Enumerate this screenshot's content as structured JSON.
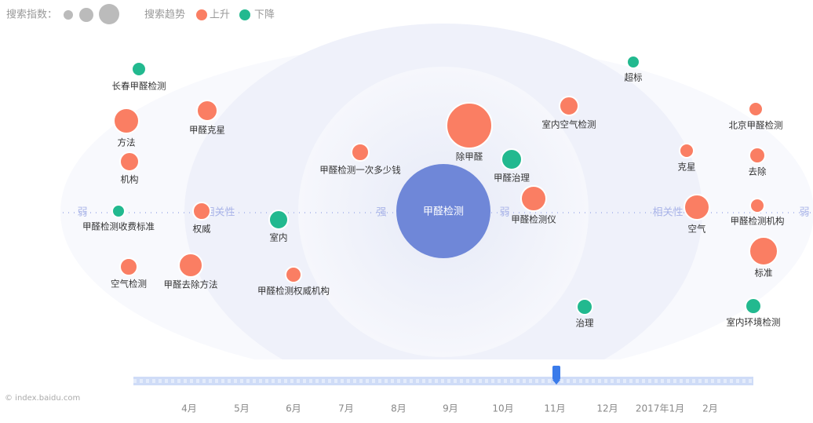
{
  "legend": {
    "index_label": "搜索指数：",
    "trend_label": "搜索趋势",
    "up": "上升",
    "down": "下降",
    "up_color": "#fa7e63",
    "down_color": "#22b98f"
  },
  "axis_labels": [
    "弱",
    "相关性",
    "强",
    "弱",
    "相关性",
    "弱"
  ],
  "center": {
    "label": "甲醛检测",
    "color": "#6f87d8"
  },
  "nodes": [
    {
      "label": "长春甲醛检测",
      "color": "#22b98f"
    },
    {
      "label": "方法",
      "color": "#fa7e63"
    },
    {
      "label": "甲醛克星",
      "color": "#fa7e63"
    },
    {
      "label": "机构",
      "color": "#fa7e63"
    },
    {
      "label": "甲醛检测收费标准",
      "color": "#22b98f"
    },
    {
      "label": "权威",
      "color": "#fa7e63"
    },
    {
      "label": "室内",
      "color": "#22b98f"
    },
    {
      "label": "空气检测",
      "color": "#fa7e63"
    },
    {
      "label": "甲醛去除方法",
      "color": "#fa7e63"
    },
    {
      "label": "甲醛检测权威机构",
      "color": "#fa7e63"
    },
    {
      "label": "甲醛检测一次多少钱",
      "color": "#fa7e63"
    },
    {
      "label": "除甲醛",
      "color": "#fa7e63"
    },
    {
      "label": "甲醛治理",
      "color": "#22b98f"
    },
    {
      "label": "甲醛检测仪",
      "color": "#fa7e63"
    },
    {
      "label": "室内空气检测",
      "color": "#fa7e63"
    },
    {
      "label": "超标",
      "color": "#22b98f"
    },
    {
      "label": "治理",
      "color": "#22b98f"
    },
    {
      "label": "克星",
      "color": "#fa7e63"
    },
    {
      "label": "空气",
      "color": "#fa7e63"
    },
    {
      "label": "北京甲醛检测",
      "color": "#fa7e63"
    },
    {
      "label": "去除",
      "color": "#fa7e63"
    },
    {
      "label": "甲醛检测机构",
      "color": "#fa7e63"
    },
    {
      "label": "标准",
      "color": "#fa7e63"
    },
    {
      "label": "室内环境检测",
      "color": "#22b98f"
    }
  ],
  "timeline": {
    "months": [
      "4月",
      "5月",
      "6月",
      "7月",
      "8月",
      "9月",
      "10月",
      "11月",
      "12月",
      "2017年1月",
      "2月"
    ]
  },
  "watermark": "© index.baidu.com"
}
